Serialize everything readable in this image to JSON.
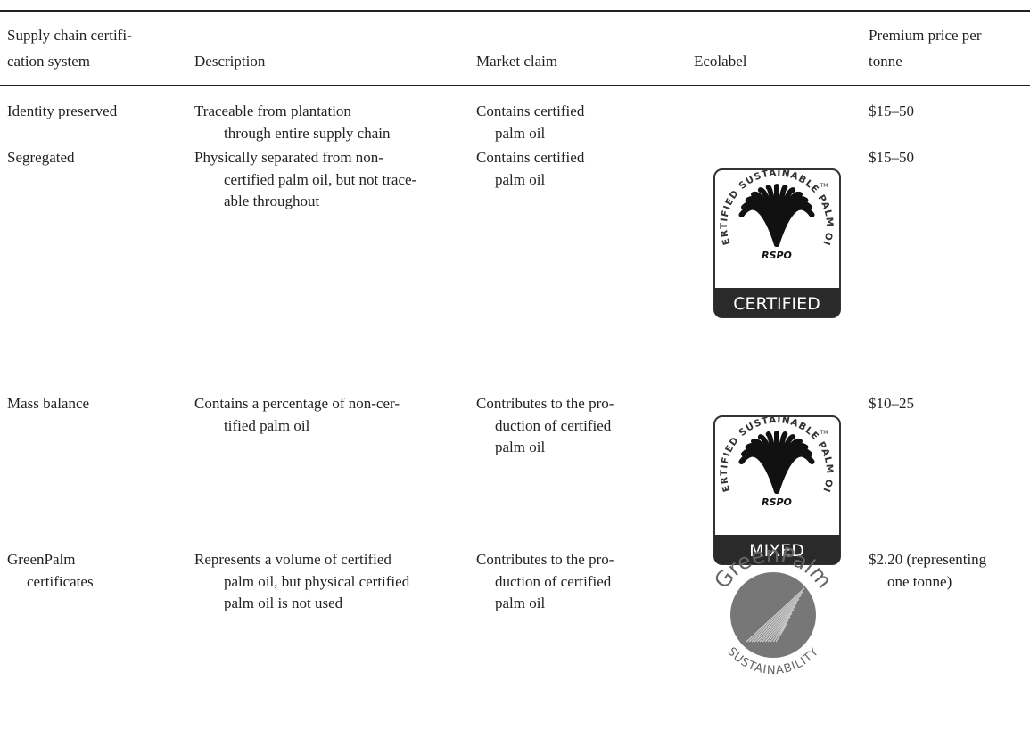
{
  "table": {
    "header": [
      [
        "Supply chain certifi-",
        "cation system"
      ],
      [
        "Description"
      ],
      [
        "Market claim"
      ],
      [
        "Ecolabel"
      ],
      [
        "Premium price per",
        "tonne"
      ]
    ],
    "rows": [
      [
        [
          "Identity preserved"
        ],
        [
          "Traceable from plantation",
          "through entire supply chain"
        ],
        [
          "Contains certified",
          "palm oil"
        ],
        [
          "$15–50"
        ]
      ],
      [
        [
          "Segregated"
        ],
        [
          "Physically separated from non-",
          "certified palm oil, but not trace-",
          "able throughout"
        ],
        [
          "Contains certified",
          "palm oil"
        ],
        [
          "$15–50"
        ]
      ],
      [
        [
          "Mass balance"
        ],
        [
          "Contains a percentage of non-cer-",
          "tified palm oil"
        ],
        [
          "Contributes to the pro-",
          "duction of certified",
          "palm oil"
        ],
        [
          "$10–25"
        ]
      ],
      [
        [
          "GreenPalm",
          "certificates"
        ],
        [
          "Represents a volume of certified",
          "palm oil, but physical certified",
          "palm oil is not used"
        ],
        [
          "Contributes to the pro-",
          "duction of certified",
          "palm oil"
        ],
        [
          "$2.20 (representing",
          "one tonne)"
        ]
      ]
    ]
  },
  "ecolabels": [
    {
      "ring": "CERTIFIED SUSTAINABLE PALM OIL",
      "mark": "RSPO",
      "tm": "TM",
      "banner": "CERTIFIED"
    },
    {
      "ring": "CERTIFIED SUSTAINABLE PALM OIL",
      "mark": "RSPO",
      "tm": "TM",
      "banner": "MIXED"
    },
    {
      "top": "GreenPalm",
      "bottom": "SUSTAINABILITY"
    }
  ]
}
